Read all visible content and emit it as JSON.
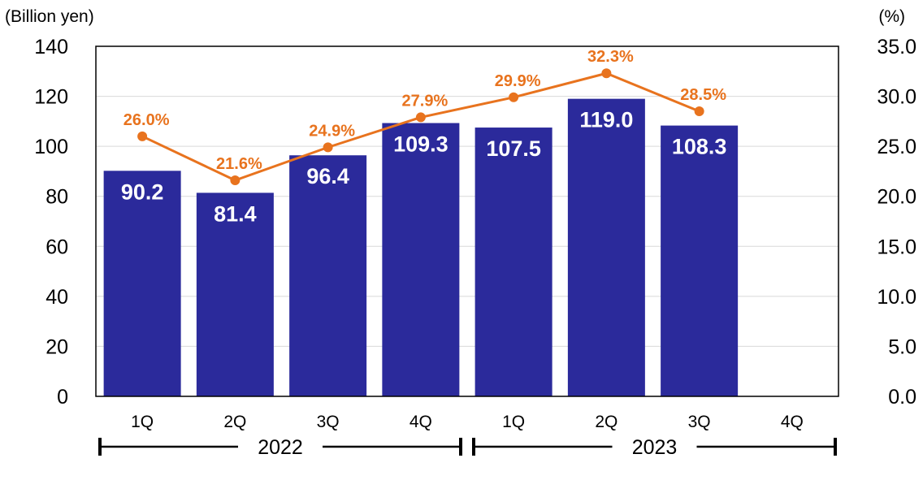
{
  "chart_data": {
    "type": "bar",
    "y_left_label": "(Billion yen)",
    "y_right_label": "(%)",
    "ylim_left": [
      0,
      140
    ],
    "ylim_right": [
      0,
      35
    ],
    "y_left_ticks": [
      "0",
      "20",
      "40",
      "60",
      "80",
      "100",
      "120",
      "140"
    ],
    "y_right_ticks": [
      "0.0",
      "5.0",
      "10.0",
      "15.0",
      "20.0",
      "25.0",
      "30.0",
      "35.0"
    ],
    "grid": true,
    "categories": [
      "1Q",
      "2Q",
      "3Q",
      "4Q",
      "1Q",
      "2Q",
      "3Q",
      "4Q"
    ],
    "groups": [
      {
        "label": "2022",
        "from": 0,
        "to": 3
      },
      {
        "label": "2023",
        "from": 4,
        "to": 7
      }
    ],
    "bar_series": {
      "values": [
        90.2,
        81.4,
        96.4,
        109.3,
        107.5,
        119.0,
        108.3,
        null
      ],
      "labels": [
        "90.2",
        "81.4",
        "96.4",
        "109.3",
        "107.5",
        "119.0",
        "108.3",
        ""
      ],
      "color": "#2b2a9b"
    },
    "line_series": {
      "values": [
        26.0,
        21.6,
        24.9,
        27.9,
        29.9,
        32.3,
        28.5,
        null
      ],
      "labels": [
        "26.0%",
        "21.6%",
        "24.9%",
        "27.9%",
        "29.9%",
        "32.3%",
        "28.5%",
        ""
      ],
      "color": "#e8731e"
    }
  }
}
